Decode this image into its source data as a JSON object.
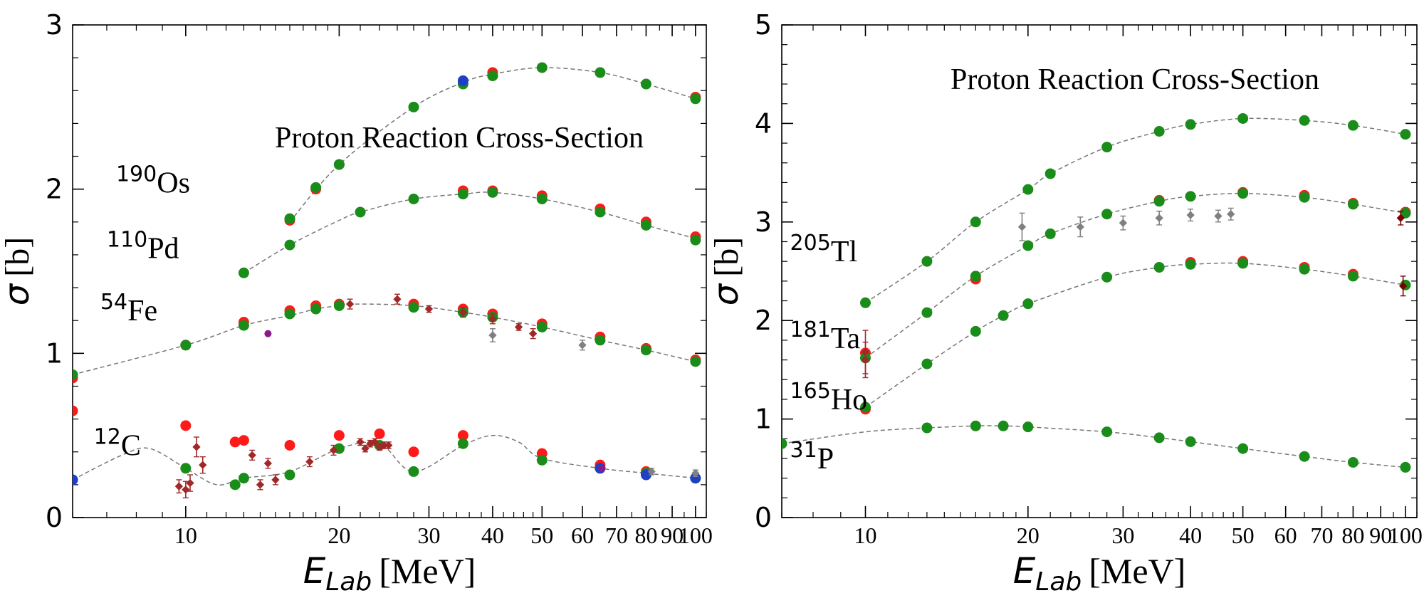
{
  "colors": {
    "model": "#777777",
    "red": "#ff1a1a",
    "green": "#1a8c1a",
    "blue": "#1f3fc6",
    "darkred": "#a12828",
    "gray": "#808080",
    "purple": "#8a1a8a",
    "maroon": "#7a0000"
  },
  "chart_data": [
    {
      "type": "scatter",
      "title": "Proton Reaction Cross-Section",
      "xlabel_main": "E",
      "xlabel_sub": "Lab",
      "xlabel_unit": "[MeV]",
      "ylabel_symbol": "σ",
      "ylabel_unit": "[b]",
      "xscale": "log",
      "xlim": [
        6,
        105
      ],
      "ylim": [
        0,
        3
      ],
      "xticks": [
        10,
        20,
        30,
        40,
        50,
        60,
        70,
        80,
        90,
        100
      ],
      "xtick_labels": [
        "10",
        "20",
        "30",
        "40",
        "50",
        "60",
        "70",
        "80",
        "90",
        "100"
      ],
      "yticks": [
        0,
        1,
        2,
        3
      ],
      "ytick_labels": [
        "0",
        "1",
        "2",
        "3"
      ],
      "annotations": [
        {
          "mass": "190",
          "element": "Os",
          "x": 7.3,
          "y": 1.98
        },
        {
          "mass": "110",
          "element": "Pd",
          "x": 7.0,
          "y": 1.58
        },
        {
          "mass": "54",
          "element": "Fe",
          "x": 6.8,
          "y": 1.2
        },
        {
          "mass": "12",
          "element": "C",
          "x": 6.6,
          "y": 0.38
        }
      ],
      "curves": [
        {
          "name": "190Os",
          "x": [
            16,
            20,
            28,
            35,
            40,
            50,
            65,
            80,
            100
          ],
          "y": [
            1.8,
            2.15,
            2.5,
            2.65,
            2.7,
            2.74,
            2.71,
            2.64,
            2.55
          ]
        },
        {
          "name": "110Pd",
          "x": [
            13,
            16,
            20,
            22,
            28,
            35,
            40,
            50,
            65,
            80,
            100
          ],
          "y": [
            1.49,
            1.66,
            1.81,
            1.86,
            1.94,
            1.97,
            1.98,
            1.94,
            1.86,
            1.78,
            1.7
          ]
        },
        {
          "name": "54Fe",
          "x": [
            6,
            10,
            13,
            16,
            18,
            20,
            22,
            28,
            35,
            40,
            50,
            65,
            80,
            100
          ],
          "y": [
            0.87,
            1.05,
            1.17,
            1.23,
            1.27,
            1.29,
            1.3,
            1.29,
            1.25,
            1.22,
            1.16,
            1.08,
            1.02,
            0.95
          ]
        },
        {
          "name": "12C",
          "x": [
            6,
            7.5,
            8.5,
            10,
            11.5,
            13,
            16,
            20,
            24,
            28,
            35,
            40,
            45,
            50,
            65,
            80,
            100
          ],
          "y": [
            0.23,
            0.38,
            0.42,
            0.3,
            0.2,
            0.24,
            0.28,
            0.42,
            0.45,
            0.28,
            0.44,
            0.5,
            0.46,
            0.36,
            0.3,
            0.27,
            0.24
          ]
        }
      ],
      "series": [
        {
          "name": "red",
          "color": "red",
          "x": [
            6,
            6,
            10,
            10,
            12.5,
            13,
            13,
            16,
            16,
            16,
            18,
            18,
            20,
            20,
            24,
            28,
            28,
            35,
            35,
            35,
            40,
            40,
            40,
            50,
            50,
            50,
            65,
            65,
            65,
            80,
            80,
            80,
            100,
            100,
            100
          ],
          "y": [
            0.85,
            0.65,
            0.56,
            1.05,
            0.46,
            0.47,
            1.19,
            0.44,
            1.26,
            1.81,
            1.29,
            2.0,
            0.5,
            1.3,
            0.51,
            0.4,
            1.3,
            0.5,
            1.27,
            1.99,
            1.24,
            1.99,
            2.71,
            0.39,
            1.18,
            1.96,
            0.32,
            1.1,
            1.88,
            0.28,
            1.03,
            1.8,
            0.96,
            1.71,
            2.56
          ]
        },
        {
          "name": "green",
          "color": "green",
          "x": [
            6,
            6,
            10,
            10,
            12.5,
            13,
            13,
            16,
            16,
            16,
            18,
            18,
            20,
            20,
            20,
            22,
            24,
            28,
            28,
            28,
            35,
            35,
            35,
            40,
            40,
            40,
            50,
            50,
            50,
            65,
            65,
            65,
            80,
            80,
            80,
            100,
            100,
            100
          ],
          "y": [
            0.87,
            0.23,
            1.05,
            0.3,
            0.2,
            0.24,
            1.17,
            0.26,
            1.24,
            1.66,
            1.27,
            2.01,
            0.42,
            1.29,
            2.15,
            1.86,
            0.44,
            0.28,
            1.28,
            1.94,
            0.45,
            1.25,
            1.97,
            1.22,
            1.98,
            2.69,
            0.35,
            1.16,
            1.94,
            0.3,
            1.08,
            1.86,
            0.27,
            1.02,
            1.78,
            0.24,
            0.95,
            1.69
          ]
        },
        {
          "name": "green-top",
          "color": "green",
          "x": [
            13,
            16,
            20,
            28,
            35,
            40,
            50,
            65,
            80,
            100
          ],
          "y": [
            1.49,
            1.82,
            2.15,
            2.5,
            2.64,
            2.69,
            2.74,
            2.71,
            2.64,
            2.55
          ]
        },
        {
          "name": "blue",
          "color": "blue",
          "x": [
            6,
            35,
            65,
            80,
            100
          ],
          "y": [
            0.23,
            2.66,
            0.3,
            0.26,
            0.24
          ]
        },
        {
          "name": "purple",
          "color": "purple",
          "x": [
            14.5,
            65.5
          ],
          "y": [
            1.12,
            0.3
          ]
        },
        {
          "name": "exp-darkred",
          "color": "darkred",
          "x": [
            9.7,
            10,
            10.5,
            10.8,
            14,
            15,
            14.5,
            13.5,
            17.5,
            19.5,
            21,
            23,
            22.5,
            23.5,
            24,
            24.5,
            22,
            25,
            26,
            30,
            35,
            40,
            45,
            48,
            10.2
          ],
          "y": [
            0.19,
            0.17,
            0.43,
            0.32,
            0.2,
            0.23,
            0.33,
            0.38,
            0.34,
            0.41,
            1.3,
            0.45,
            0.42,
            0.46,
            0.43,
            0.44,
            0.46,
            0.44,
            1.33,
            1.27,
            1.25,
            1.21,
            1.16,
            1.12,
            0.21
          ],
          "err": [
            0.04,
            0.05,
            0.06,
            0.05,
            0.03,
            0.03,
            0.03,
            0.03,
            0.03,
            0.03,
            0.03,
            0.02,
            0.02,
            0.02,
            0.02,
            0.02,
            0.02,
            0.02,
            0.03,
            0.02,
            0.03,
            0.03,
            0.02,
            0.03,
            0.05
          ]
        },
        {
          "name": "exp-gray",
          "color": "gray",
          "x": [
            40,
            60,
            82,
            100
          ],
          "y": [
            1.11,
            1.05,
            0.28,
            0.27
          ],
          "err": [
            0.04,
            0.03,
            0.02,
            0.02
          ]
        }
      ]
    },
    {
      "type": "scatter",
      "title": "Proton Reaction Cross-Section",
      "xlabel_main": "E",
      "xlabel_sub": "Lab",
      "xlabel_unit": "[MeV]",
      "ylabel_symbol": "σ",
      "ylabel_unit": "[b]",
      "xscale": "log",
      "xlim": [
        7,
        105
      ],
      "ylim": [
        0,
        5
      ],
      "xticks": [
        10,
        20,
        30,
        40,
        50,
        60,
        70,
        80,
        90,
        100
      ],
      "xtick_labels": [
        "10",
        "20",
        "30",
        "40",
        "50",
        "60",
        "70",
        "80",
        "90",
        "100"
      ],
      "yticks": [
        0,
        1,
        2,
        3,
        4,
        5
      ],
      "ytick_labels": [
        "0",
        "1",
        "2",
        "3",
        "4",
        "5"
      ],
      "annotations": [
        {
          "mass": "205",
          "element": "Tl",
          "x": 7.25,
          "y": 2.6
        },
        {
          "mass": "181",
          "element": "Ta",
          "x": 7.25,
          "y": 1.72
        },
        {
          "mass": "165",
          "element": "Ho",
          "x": 7.25,
          "y": 1.1
        },
        {
          "mass": "31",
          "element": "P",
          "x": 7.25,
          "y": 0.5
        }
      ],
      "curves": [
        {
          "name": "205Tl",
          "x": [
            10,
            13,
            16,
            20,
            22,
            28,
            35,
            40,
            50,
            65,
            80,
            100
          ],
          "y": [
            2.18,
            2.6,
            3.0,
            3.33,
            3.49,
            3.76,
            3.92,
            3.99,
            4.05,
            4.03,
            3.98,
            3.89
          ]
        },
        {
          "name": "181Ta",
          "x": [
            10,
            13,
            16,
            20,
            22,
            28,
            35,
            40,
            50,
            65,
            80,
            100
          ],
          "y": [
            1.62,
            2.08,
            2.45,
            2.76,
            2.88,
            3.08,
            3.21,
            3.26,
            3.29,
            3.25,
            3.18,
            3.09
          ]
        },
        {
          "name": "165Ho",
          "x": [
            10,
            13,
            16,
            18,
            20,
            28,
            35,
            40,
            50,
            65,
            80,
            100
          ],
          "y": [
            1.12,
            1.56,
            1.89,
            2.05,
            2.17,
            2.44,
            2.54,
            2.57,
            2.58,
            2.52,
            2.45,
            2.36
          ]
        },
        {
          "name": "31P",
          "x": [
            7,
            10,
            13,
            16,
            18,
            20,
            28,
            35,
            40,
            50,
            65,
            80,
            100
          ],
          "y": [
            0.75,
            0.87,
            0.91,
            0.93,
            0.93,
            0.92,
            0.87,
            0.81,
            0.77,
            0.7,
            0.62,
            0.56,
            0.51
          ]
        }
      ],
      "series": [
        {
          "name": "red",
          "color": "red",
          "x": [
            10,
            10,
            16,
            35,
            40,
            50,
            50,
            65,
            65,
            80,
            80,
            100
          ],
          "y": [
            1.1,
            1.67,
            2.42,
            3.22,
            2.59,
            3.3,
            2.6,
            3.27,
            2.54,
            3.19,
            2.47,
            3.1
          ]
        },
        {
          "name": "green",
          "color": "green",
          "x": [
            7,
            10,
            10,
            10,
            13,
            13,
            13,
            13,
            16,
            16,
            16,
            16,
            18,
            18,
            20,
            20,
            20,
            20,
            22,
            22,
            28,
            28,
            28,
            28,
            35,
            35,
            35,
            35,
            40,
            40,
            40,
            40,
            50,
            50,
            50,
            50,
            65,
            65,
            65,
            65,
            80,
            80,
            80,
            80,
            100,
            100,
            100,
            100
          ],
          "y": [
            0.75,
            2.18,
            1.62,
            1.12,
            2.6,
            2.08,
            1.56,
            0.91,
            3.0,
            2.45,
            1.89,
            0.93,
            2.05,
            0.93,
            3.33,
            2.76,
            2.17,
            0.92,
            3.49,
            2.88,
            3.76,
            3.08,
            2.44,
            0.87,
            3.92,
            3.21,
            2.54,
            0.81,
            3.99,
            3.26,
            2.57,
            0.77,
            4.05,
            3.29,
            2.58,
            0.7,
            4.03,
            3.25,
            2.52,
            0.62,
            3.98,
            3.18,
            2.45,
            0.56,
            3.89,
            3.09,
            2.36,
            0.51
          ]
        },
        {
          "name": "exp-darkred",
          "color": "darkred",
          "x": [
            10,
            10
          ],
          "y": [
            1.68,
            1.6
          ],
          "err": [
            0.22,
            0.18
          ]
        },
        {
          "name": "exp-gray",
          "color": "gray",
          "x": [
            19.5,
            25,
            30,
            35,
            40,
            45,
            47.5
          ],
          "y": [
            2.95,
            2.95,
            2.99,
            3.04,
            3.07,
            3.06,
            3.08
          ],
          "err": [
            0.14,
            0.1,
            0.07,
            0.07,
            0.06,
            0.06,
            0.06
          ]
        },
        {
          "name": "exp-maroon",
          "color": "maroon",
          "x": [
            98,
            99
          ],
          "y": [
            3.04,
            2.35
          ],
          "err": [
            0.07,
            0.1
          ]
        }
      ]
    }
  ]
}
